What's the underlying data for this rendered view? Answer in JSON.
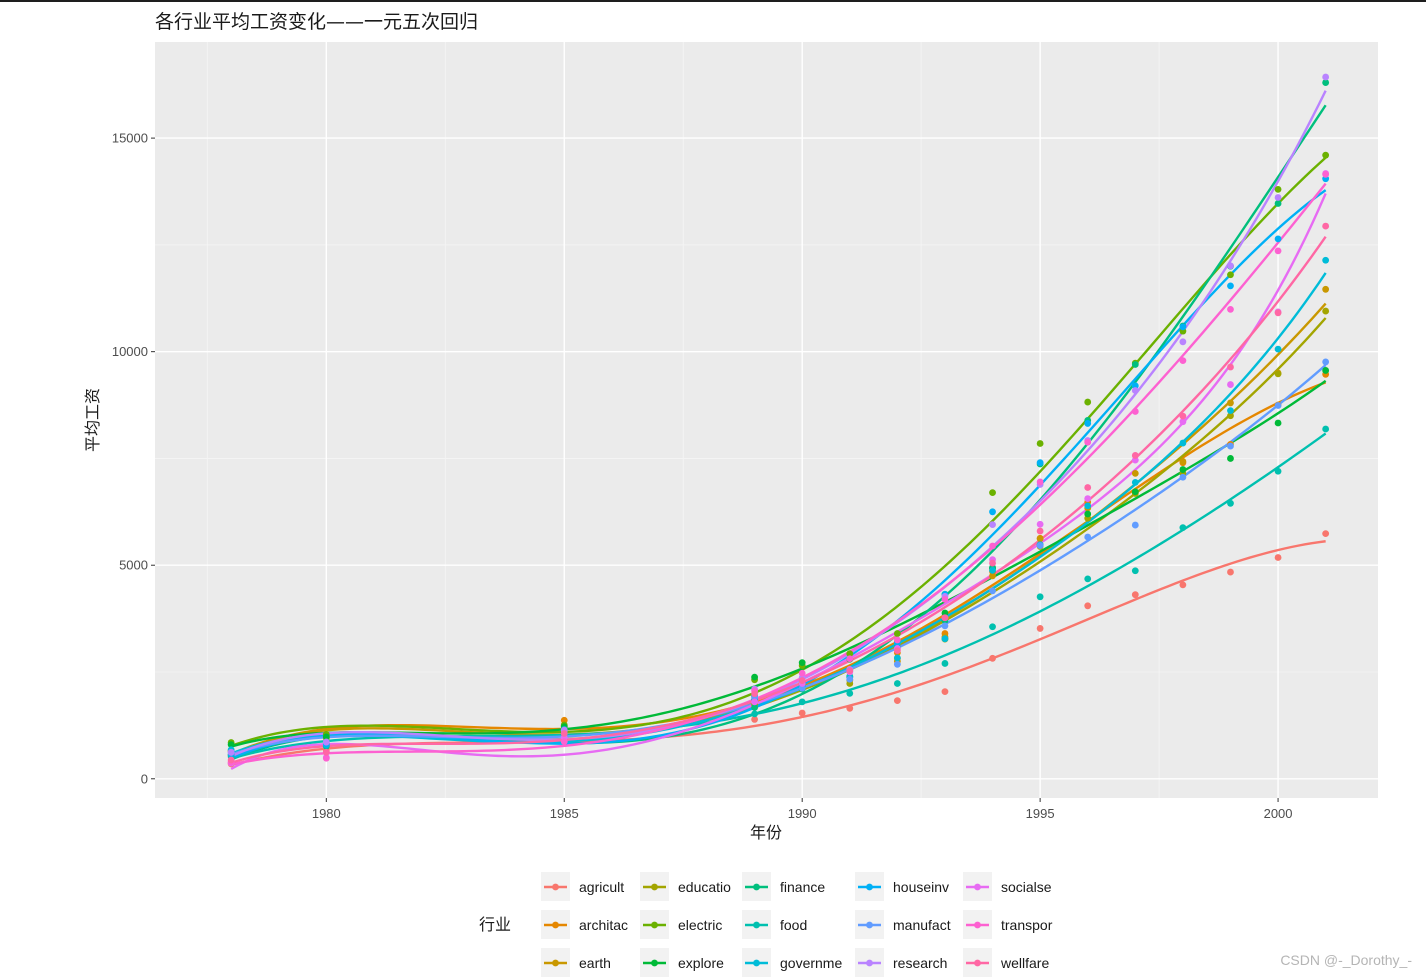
{
  "chart_data": {
    "type": "scatter",
    "title": "各行业平均工资变化——一元五次回归",
    "xlabel": "年份",
    "ylabel": "平均工资",
    "xlim": [
      1976.4,
      2002.1
    ],
    "ylim": [
      -450,
      17250
    ],
    "xticks": [
      1980,
      1985,
      1990,
      1995,
      2000
    ],
    "yticks": [
      0,
      5000,
      10000,
      15000
    ],
    "grid": true,
    "smoothing": "poly5",
    "legend": {
      "title": "行业",
      "position": "bottom",
      "ncol": 5
    },
    "years": [
      1978,
      1980,
      1985,
      1989,
      1990,
      1991,
      1992,
      1993,
      1994,
      1995,
      1996,
      1997,
      1998,
      1999,
      2000,
      2001
    ],
    "series": [
      {
        "name": "agricult",
        "color": "#F8766D",
        "values": [
          350,
          650,
          890,
          1390,
          1540,
          1650,
          1830,
          2040,
          2820,
          3520,
          4050,
          4310,
          4540,
          4840,
          5180,
          5740
        ]
      },
      {
        "name": "architac",
        "color": "#E58700",
        "values": [
          640,
          990,
          1370,
          1930,
          2230,
          2380,
          2950,
          3400,
          4850,
          5630,
          6480,
          6700,
          7400,
          7830,
          8750,
          9470
        ]
      },
      {
        "name": "earth",
        "color": "#C99800",
        "values": [
          660,
          950,
          1240,
          1850,
          2250,
          2310,
          2750,
          3320,
          4750,
          5620,
          6340,
          7150,
          7430,
          8800,
          9500,
          11460
        ]
      },
      {
        "name": "educatio",
        "color": "#A3A500",
        "values": [
          550,
          820,
          1170,
          1730,
          2170,
          2230,
          2820,
          3270,
          4920,
          5440,
          6100,
          6680,
          7150,
          8500,
          9480,
          10950
        ]
      },
      {
        "name": "electric",
        "color": "#6BB100",
        "values": [
          850,
          1040,
          1260,
          2320,
          2650,
          2930,
          3400,
          4320,
          6700,
          7850,
          8820,
          9730,
          10480,
          11800,
          13800,
          14600
        ]
      },
      {
        "name": "explore",
        "color": "#00BA38",
        "values": [
          800,
          980,
          1220,
          2380,
          2720,
          2800,
          3220,
          3880,
          4930,
          5480,
          6200,
          6720,
          7240,
          7500,
          8330,
          9560
        ]
      },
      {
        "name": "finance",
        "color": "#00BF7D",
        "values": [
          560,
          760,
          1080,
          1670,
          2100,
          2400,
          3080,
          3700,
          4950,
          7370,
          8390,
          9700,
          10600,
          12000,
          13470,
          16300
        ]
      },
      {
        "name": "food",
        "color": "#00C0AF",
        "values": [
          520,
          780,
          1160,
          1520,
          1800,
          2000,
          2230,
          2700,
          3560,
          4260,
          4680,
          4870,
          5880,
          6450,
          7200,
          8190
        ]
      },
      {
        "name": "governme",
        "color": "#00BCD8",
        "values": [
          680,
          820,
          1090,
          1860,
          2150,
          2380,
          2830,
          3280,
          4880,
          5480,
          6390,
          6940,
          7860,
          8620,
          10060,
          12140
        ]
      },
      {
        "name": "houseinv",
        "color": "#00B0F6",
        "values": [
          580,
          800,
          1050,
          1940,
          2160,
          2520,
          3180,
          4320,
          6250,
          7400,
          8320,
          9200,
          10580,
          11540,
          12640,
          14050
        ]
      },
      {
        "name": "manufact",
        "color": "#619CFF",
        "values": [
          620,
          860,
          1120,
          1910,
          2120,
          2330,
          2680,
          3580,
          4400,
          5460,
          5660,
          5940,
          7060,
          7790,
          8740,
          9760
        ]
      },
      {
        "name": "research",
        "color": "#B983FF",
        "values": [
          620,
          860,
          1140,
          2100,
          2370,
          2560,
          3050,
          4270,
          5950,
          6890,
          7920,
          9090,
          10230,
          12010,
          13610,
          16430
        ]
      },
      {
        "name": "socialse",
        "color": "#E76BF3",
        "values": [
          370,
          500,
          960,
          1800,
          2230,
          2500,
          3050,
          3770,
          5130,
          5960,
          6560,
          7460,
          8360,
          9230,
          10930,
          14170
        ]
      },
      {
        "name": "transpor",
        "color": "#FD61D1",
        "values": [
          390,
          480,
          870,
          2060,
          2470,
          2810,
          3250,
          4200,
          5450,
          6950,
          7880,
          8600,
          9790,
          10990,
          12360,
          14150
        ]
      },
      {
        "name": "wellfare",
        "color": "#FF67A4",
        "values": [
          440,
          620,
          1060,
          1990,
          2300,
          2530,
          3000,
          3770,
          5050,
          5800,
          6820,
          7570,
          8490,
          9640,
          10910,
          12940
        ]
      }
    ]
  },
  "watermark": "CSDN @-_Dorothy_-"
}
